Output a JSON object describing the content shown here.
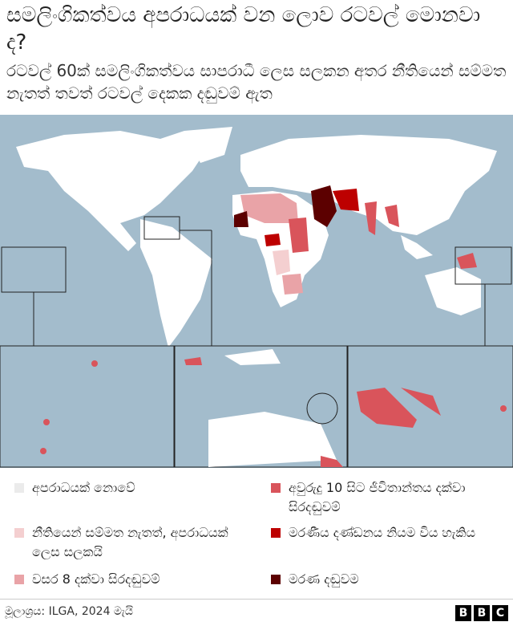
{
  "header": {
    "title": "සමලිංගිකත්වය අපරාධයක් වන ලොව රටවල් මොනවා ද?",
    "subtitle": "රටවල් 60ක් සමලිංගිකත්වය සාපරාධී ලෙස සලකන අතර නීතියෙන් සම්මත නැතත් තවත් රටවල් දෙකක දඬුවම් ඇත"
  },
  "legend": {
    "items": [
      {
        "label": "අපරාධයක් නොවේ",
        "color": "#ebebeb"
      },
      {
        "label": "නීතියෙන් සම්මත නැතත්, අපරාධයක් ලෙස සලකයි",
        "color": "#f4cfd0"
      },
      {
        "label": "වසර 8 දක්වා සිරදඬුවම්",
        "color": "#e9a3a7"
      },
      {
        "label": "අවුරුදු 10 සිට ජීවිතාන්තය දක්වා සිරදඬුවම්",
        "color": "#d9545b"
      },
      {
        "label": "මරණීය දණ්ඩනය නියම විය හැකිය",
        "color": "#bd0000"
      },
      {
        "label": "මරණ දඬුවම",
        "color": "#5c0000"
      }
    ]
  },
  "footer": {
    "source": "මූලාශ්‍රය: ILGA, 2024 මැයි",
    "logo": [
      "B",
      "B",
      "C"
    ]
  }
}
